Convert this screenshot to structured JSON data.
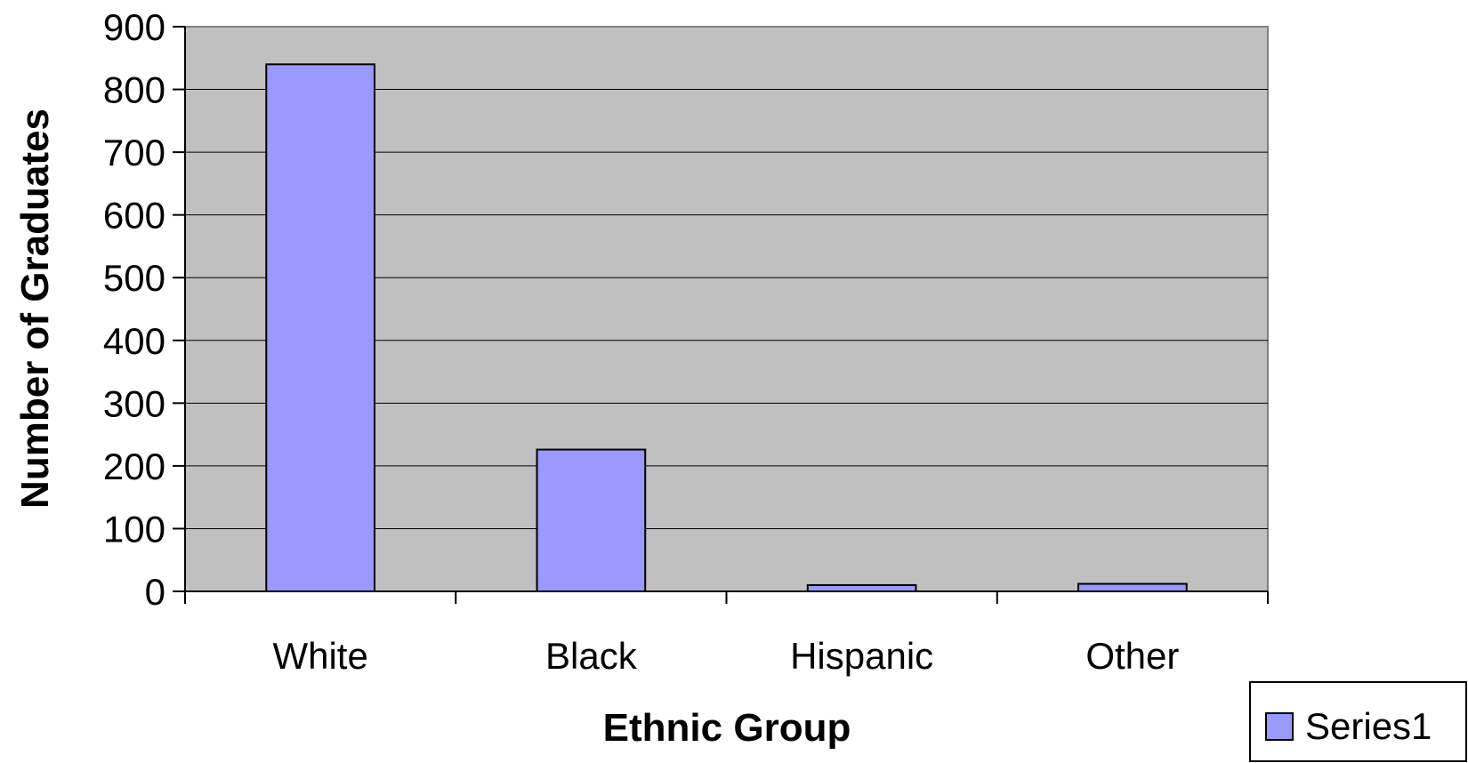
{
  "chart_data": {
    "type": "bar",
    "title": "",
    "xlabel": "Ethnic Group",
    "ylabel": "Number of Graduates",
    "categories": [
      "White",
      "Black",
      "Hispanic",
      "Other"
    ],
    "series": [
      {
        "name": "Series1",
        "values": [
          840,
          226,
          10,
          12
        ],
        "color": "#9999ff"
      }
    ],
    "ylim": [
      0,
      900
    ],
    "yticks": [
      0,
      100,
      200,
      300,
      400,
      500,
      600,
      700,
      800,
      900
    ],
    "grid": true,
    "legend_position": "bottom-right",
    "plot_background": "#c0c0c0"
  }
}
